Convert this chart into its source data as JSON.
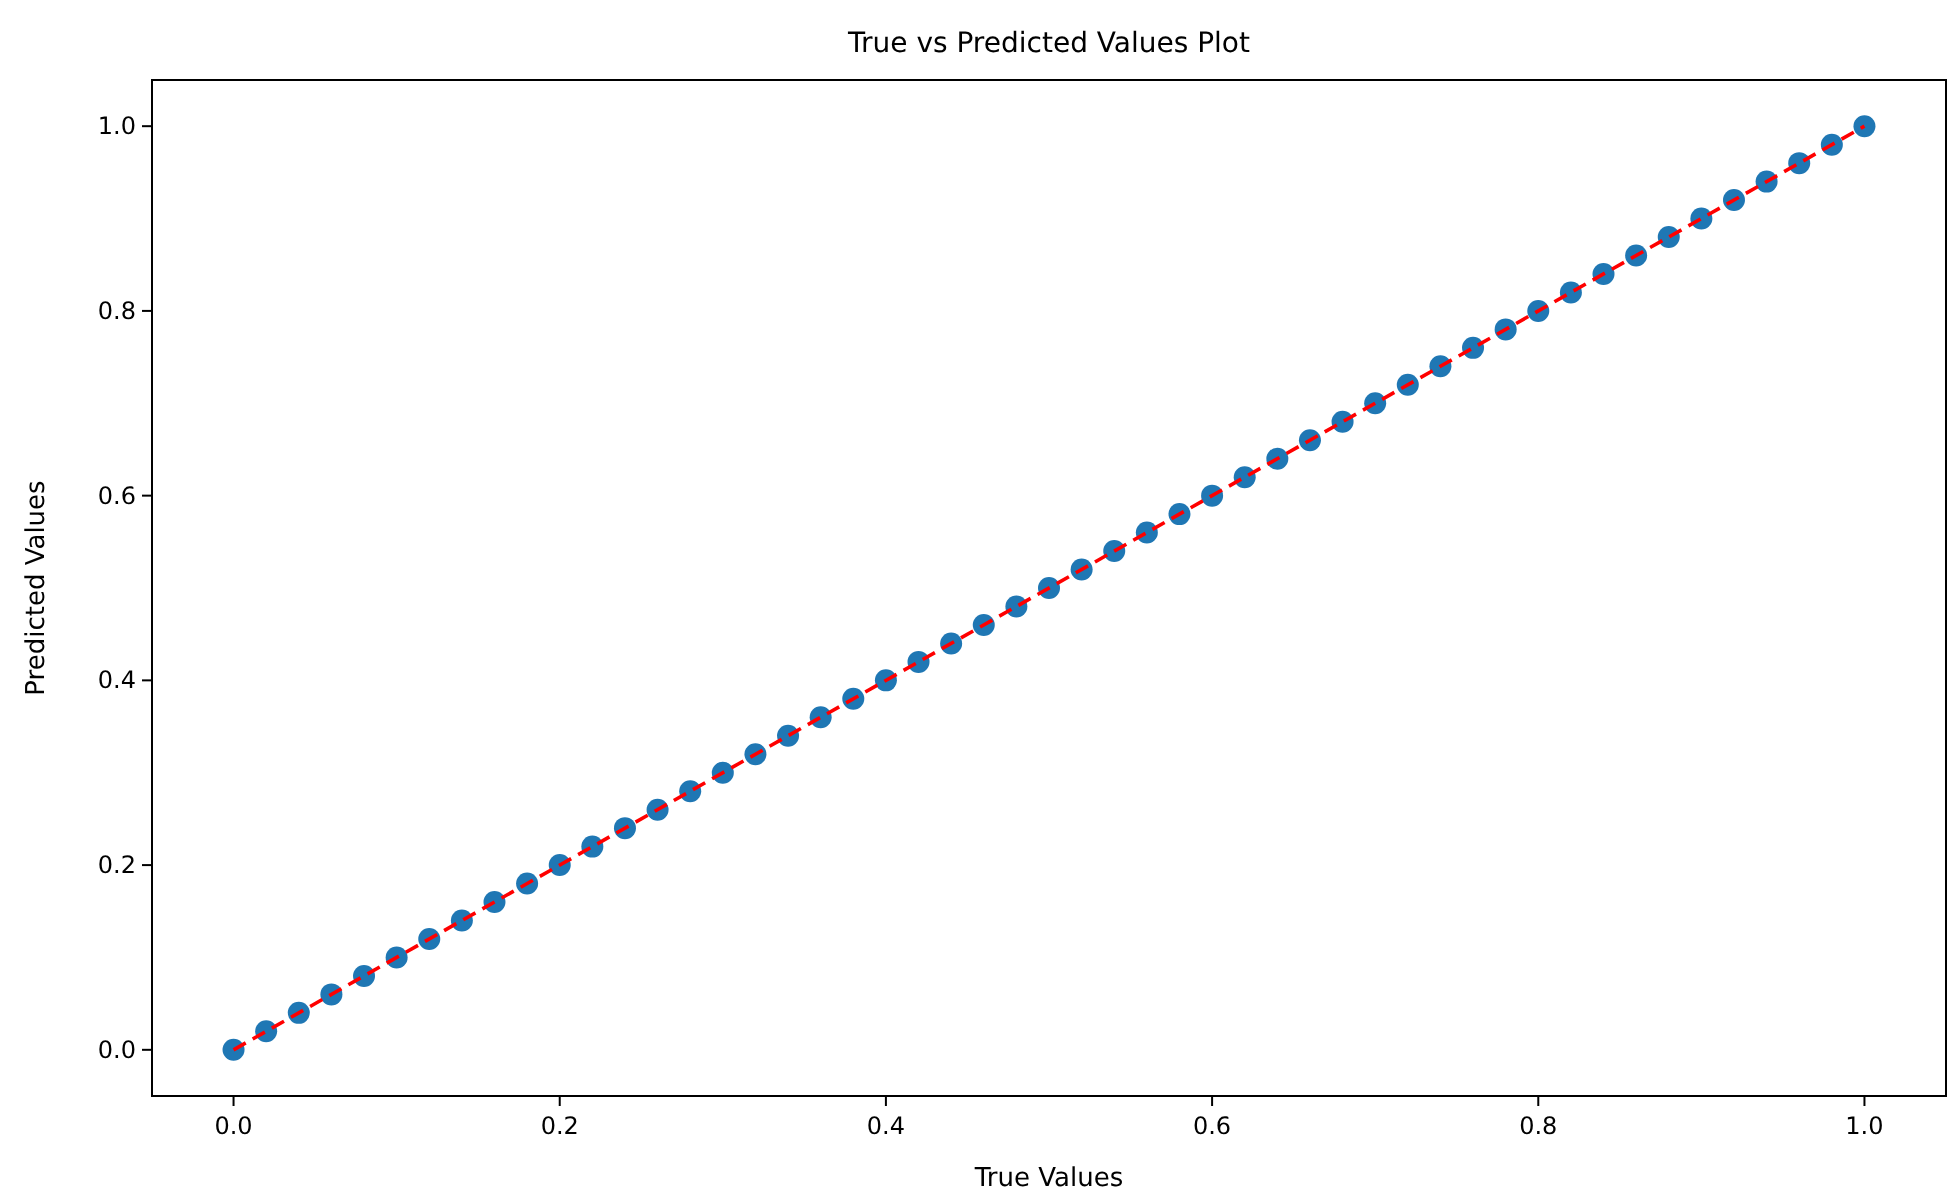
{
  "chart_data": {
    "type": "scatter",
    "title": "True vs Predicted Values Plot",
    "xlabel": "True Values",
    "ylabel": "Predicted Values",
    "xlim": [
      -0.05,
      1.05
    ],
    "ylim": [
      -0.05,
      1.05
    ],
    "xticks": [
      {
        "value": 0,
        "label": "0.0"
      },
      {
        "value": 0.2,
        "label": "0.2"
      },
      {
        "value": 0.4,
        "label": "0.4"
      },
      {
        "value": 0.6,
        "label": "0.6"
      },
      {
        "value": 0.8,
        "label": "0.8"
      },
      {
        "value": 1,
        "label": "1.0"
      }
    ],
    "yticks": [
      {
        "value": 0,
        "label": "0.0"
      },
      {
        "value": 0.2,
        "label": "0.2"
      },
      {
        "value": 0.4,
        "label": "0.4"
      },
      {
        "value": 0.6,
        "label": "0.6"
      },
      {
        "value": 0.8,
        "label": "0.8"
      },
      {
        "value": 1,
        "label": "1.0"
      }
    ],
    "series": [
      {
        "color": "#1f77b4",
        "marker": "circle",
        "x": [
          0,
          0.02,
          0.04,
          0.06,
          0.08,
          0.1,
          0.12,
          0.14,
          0.16,
          0.18,
          0.2,
          0.22,
          0.24,
          0.26,
          0.28,
          0.3,
          0.32,
          0.34,
          0.36,
          0.38,
          0.4,
          0.42,
          0.44,
          0.46,
          0.48,
          0.5,
          0.52,
          0.54,
          0.56,
          0.58,
          0.6,
          0.62,
          0.64,
          0.66,
          0.68,
          0.7,
          0.72,
          0.74,
          0.76,
          0.78,
          0.8,
          0.82,
          0.84,
          0.86,
          0.88,
          0.9,
          0.92,
          0.94,
          0.96,
          0.98,
          1
        ],
        "values": [
          0,
          0.02,
          0.04,
          0.06,
          0.08,
          0.1,
          0.12,
          0.14,
          0.16,
          0.18,
          0.2,
          0.22,
          0.24,
          0.26,
          0.28,
          0.3,
          0.32,
          0.34,
          0.36,
          0.38,
          0.4,
          0.42,
          0.44,
          0.46,
          0.48,
          0.5,
          0.52,
          0.54,
          0.56,
          0.58,
          0.6,
          0.62,
          0.64,
          0.66,
          0.68,
          0.7,
          0.72,
          0.74,
          0.76,
          0.78,
          0.8,
          0.82,
          0.84,
          0.86,
          0.88,
          0.9,
          0.92,
          0.94,
          0.96,
          0.98,
          1
        ]
      },
      {
        "type": "line",
        "color": "#ff0000",
        "line_style": "dashed",
        "x": [
          0,
          1
        ],
        "values": [
          0,
          1
        ]
      }
    ]
  }
}
